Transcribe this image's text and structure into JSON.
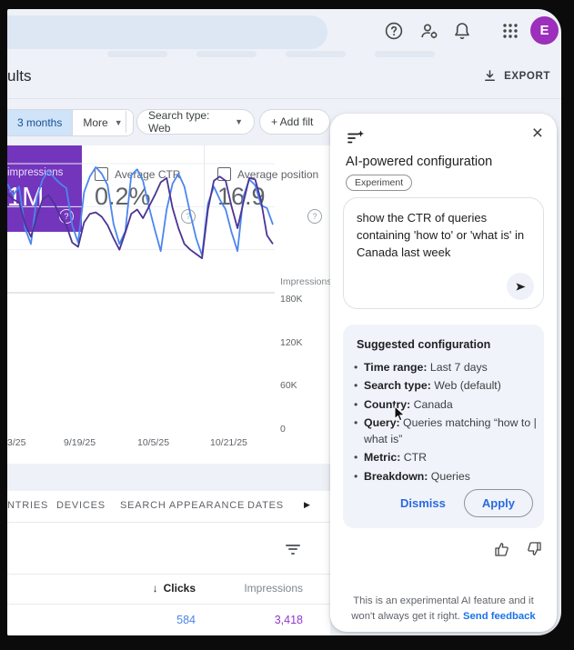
{
  "topbar": {
    "avatar_initial": "E"
  },
  "page": {
    "title": "ults",
    "export_label": "EXPORT"
  },
  "filters": {
    "date_range": "3 months",
    "more": "More",
    "search_type": "Search type: Web",
    "add_filter": "+ Add filt"
  },
  "metrics": {
    "impressions_label": "impressions",
    "impressions_value": "1M",
    "ctr_label": "Average CTR",
    "ctr_value": "0.2%",
    "position_label": "Average position",
    "position_value": "16.9"
  },
  "chart_data": {
    "type": "line",
    "y_axis_label": "Impressions",
    "y_tick_labels": [
      "180K",
      "120K",
      "60K",
      "0"
    ],
    "grid_values_k": [
      180,
      120,
      60,
      0
    ],
    "ylim_k": [
      0,
      195
    ],
    "x_tick_labels": [
      "3/25",
      "9/19/25",
      "10/5/25",
      "10/21/25"
    ],
    "legend_position": "none",
    "series": [
      {
        "name": "clicks-line",
        "color": "#4c86ee",
        "values": [
          152,
          136,
          148,
          90,
          68,
          132,
          158,
          170,
          160,
          152,
          146,
          94,
          70,
          140,
          162,
          175,
          166,
          150,
          96,
          68,
          86,
          164,
          172,
          156,
          120,
          88,
          58,
          116,
          152,
          166,
          148,
          110,
          76,
          52,
          124,
          148,
          130,
          116,
          84,
          58,
          134,
          158,
          150,
          122,
          118,
          95
        ]
      },
      {
        "name": "impressions-line",
        "color": "#4b3494",
        "values": [
          138,
          130,
          126,
          96,
          78,
          106,
          130,
          136,
          124,
          106,
          94,
          70,
          64,
          98,
          110,
          112,
          106,
          94,
          76,
          60,
          84,
          110,
          116,
          104,
          120,
          136,
          154,
          160,
          118,
          90,
          68,
          60,
          54,
          48,
          116,
          156,
          162,
          156,
          120,
          90,
          126,
          160,
          158,
          128,
          80,
          68
        ]
      }
    ]
  },
  "tabs": {
    "items": [
      "NTRIES",
      "DEVICES",
      "SEARCH APPEARANCE",
      "DATES"
    ]
  },
  "table": {
    "col_clicks": "Clicks",
    "col_impressions": "Impressions",
    "row_clicks": "584",
    "row_impressions": "3,418"
  },
  "ai_panel": {
    "title": "AI-powered configuration",
    "badge": "Experiment",
    "prompt": "show the CTR of queries containing 'how to' or 'what is' in Canada  last week",
    "suggested_title": "Suggested configuration",
    "items": [
      {
        "label": "Time range:",
        "value": " Last 7 days"
      },
      {
        "label": "Search type:",
        "value": " Web (default)"
      },
      {
        "label": "Country:",
        "value": " Canada"
      },
      {
        "label": "Query:",
        "value": " Queries matching “how to | what is”"
      },
      {
        "label": "Metric:",
        "value": " CTR"
      },
      {
        "label": "Breakdown:",
        "value": " Queries"
      }
    ],
    "dismiss_label": "Dismiss",
    "apply_label": "Apply",
    "footer_text": "This is an experimental AI feature and it won't always get it right.",
    "footer_link": "Send feedback"
  },
  "colors": {
    "accent_blue": "#1a73e8",
    "impressions_purple": "#7435bd",
    "chart_blue": "#4c86ee",
    "chart_purple": "#4b3494",
    "avatar_purple": "#9c2fbb"
  }
}
